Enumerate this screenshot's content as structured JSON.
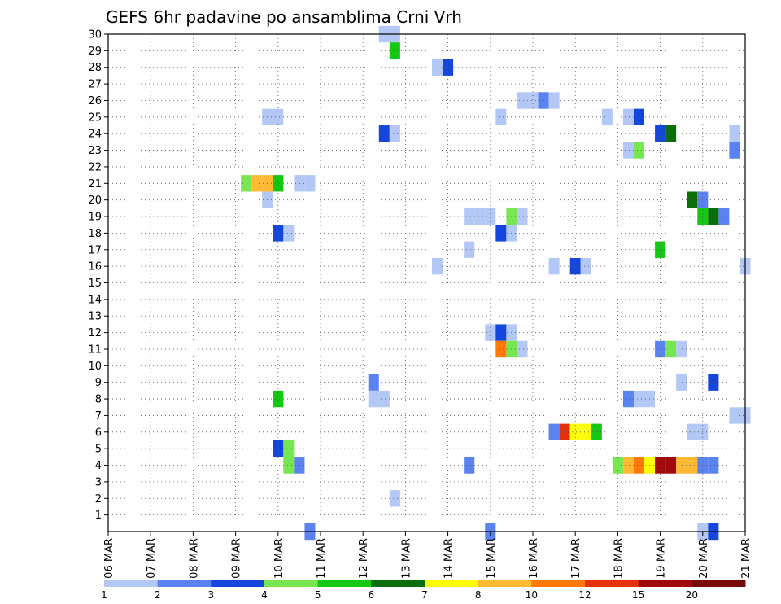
{
  "chart_data": {
    "type": "heatmap",
    "title": "GEFS 6hr padavine po ansamblima Crni Vrh",
    "x_ticks": [
      "06 MAR",
      "07 MAR",
      "08 MAR",
      "09 MAR",
      "10 MAR",
      "11 MAR",
      "12 MAR",
      "13 MAR",
      "14 MAR",
      "15 MAR",
      "16 MAR",
      "17 MAR",
      "18 MAR",
      "19 MAR",
      "20 MAR",
      "21 MAR"
    ],
    "y_ticks": [
      1,
      2,
      3,
      4,
      5,
      6,
      7,
      8,
      9,
      10,
      11,
      12,
      13,
      14,
      15,
      16,
      17,
      18,
      19,
      20,
      21,
      22,
      23,
      24,
      25,
      26,
      27,
      28,
      29,
      30
    ],
    "xlim_days": [
      6,
      21
    ],
    "ylim": [
      0,
      30
    ],
    "grid": true,
    "legend": {
      "placement": "bottom",
      "labels": [
        "1",
        "2",
        "3",
        "4",
        "5",
        "6",
        "7",
        "8",
        "10",
        "12",
        "15",
        "20"
      ],
      "colors": [
        "#b4c8f5",
        "#5a82f0",
        "#1446dc",
        "#78e650",
        "#14c814",
        "#0a6e0a",
        "#ffff0a",
        "#ffb932",
        "#ff780a",
        "#e6320a",
        "#a00a0a",
        "#780a0a"
      ]
    },
    "cells": [
      {
        "day": 12.5,
        "member": 30,
        "value": 1.5
      },
      {
        "day": 12.75,
        "member": 30,
        "value": 1.5
      },
      {
        "day": 12.75,
        "member": 29,
        "value": 5.5
      },
      {
        "day": 13.75,
        "member": 28,
        "value": 1.5
      },
      {
        "day": 14.0,
        "member": 28,
        "value": 3.5
      },
      {
        "day": 15.75,
        "member": 26,
        "value": 1.5
      },
      {
        "day": 16.0,
        "member": 26,
        "value": 1.5
      },
      {
        "day": 16.25,
        "member": 26,
        "value": 2.5
      },
      {
        "day": 16.5,
        "member": 26,
        "value": 1.5
      },
      {
        "day": 9.75,
        "member": 25,
        "value": 1.5
      },
      {
        "day": 10.0,
        "member": 25,
        "value": 1.5
      },
      {
        "day": 15.25,
        "member": 25,
        "value": 1.5
      },
      {
        "day": 17.75,
        "member": 25,
        "value": 1.5
      },
      {
        "day": 18.25,
        "member": 25,
        "value": 1.5
      },
      {
        "day": 18.5,
        "member": 25,
        "value": 3.5
      },
      {
        "day": 12.5,
        "member": 24,
        "value": 3.5
      },
      {
        "day": 12.75,
        "member": 24,
        "value": 1.5
      },
      {
        "day": 19.0,
        "member": 24,
        "value": 3.5
      },
      {
        "day": 19.25,
        "member": 24,
        "value": 6.5
      },
      {
        "day": 20.75,
        "member": 24,
        "value": 1.5
      },
      {
        "day": 18.25,
        "member": 23,
        "value": 1.5
      },
      {
        "day": 18.5,
        "member": 23,
        "value": 4.5
      },
      {
        "day": 20.75,
        "member": 23,
        "value": 2.5
      },
      {
        "day": 9.25,
        "member": 21,
        "value": 4.5
      },
      {
        "day": 9.5,
        "member": 21,
        "value": 9
      },
      {
        "day": 9.75,
        "member": 21,
        "value": 9
      },
      {
        "day": 10.0,
        "member": 21,
        "value": 5.5
      },
      {
        "day": 10.5,
        "member": 21,
        "value": 1.5
      },
      {
        "day": 10.75,
        "member": 21,
        "value": 1.5
      },
      {
        "day": 9.75,
        "member": 20,
        "value": 1.5
      },
      {
        "day": 19.75,
        "member": 20,
        "value": 6.5
      },
      {
        "day": 20.0,
        "member": 20,
        "value": 2.5
      },
      {
        "day": 14.5,
        "member": 19,
        "value": 1.5
      },
      {
        "day": 14.75,
        "member": 19,
        "value": 1.5
      },
      {
        "day": 15.0,
        "member": 19,
        "value": 1.5
      },
      {
        "day": 15.5,
        "member": 19,
        "value": 4.5
      },
      {
        "day": 15.75,
        "member": 19,
        "value": 1.5
      },
      {
        "day": 20.0,
        "member": 19,
        "value": 5.5
      },
      {
        "day": 20.25,
        "member": 19,
        "value": 6.5
      },
      {
        "day": 20.5,
        "member": 19,
        "value": 2.5
      },
      {
        "day": 10.0,
        "member": 18,
        "value": 3.5
      },
      {
        "day": 10.25,
        "member": 18,
        "value": 1.5
      },
      {
        "day": 15.25,
        "member": 18,
        "value": 3.5
      },
      {
        "day": 15.5,
        "member": 18,
        "value": 1.5
      },
      {
        "day": 14.5,
        "member": 17,
        "value": 1.5
      },
      {
        "day": 19.0,
        "member": 17,
        "value": 5.5
      },
      {
        "day": 13.75,
        "member": 16,
        "value": 1.5
      },
      {
        "day": 16.5,
        "member": 16,
        "value": 1.5
      },
      {
        "day": 17.0,
        "member": 16,
        "value": 3
      },
      {
        "day": 17.25,
        "member": 16,
        "value": 1.5
      },
      {
        "day": 21.0,
        "member": 16,
        "value": 1.5
      },
      {
        "day": 15.0,
        "member": 12,
        "value": 1.5
      },
      {
        "day": 15.25,
        "member": 12,
        "value": 3.5
      },
      {
        "day": 15.5,
        "member": 12,
        "value": 1.5
      },
      {
        "day": 15.25,
        "member": 11,
        "value": 11
      },
      {
        "day": 15.5,
        "member": 11,
        "value": 4.5
      },
      {
        "day": 15.75,
        "member": 11,
        "value": 1.5
      },
      {
        "day": 19.0,
        "member": 11,
        "value": 2.5
      },
      {
        "day": 19.25,
        "member": 11,
        "value": 4.5
      },
      {
        "day": 19.5,
        "member": 11,
        "value": 1.5
      },
      {
        "day": 12.25,
        "member": 9,
        "value": 2.5
      },
      {
        "day": 19.5,
        "member": 9,
        "value": 1.5
      },
      {
        "day": 20.25,
        "member": 9,
        "value": 3.5
      },
      {
        "day": 12.25,
        "member": 8,
        "value": 1.5
      },
      {
        "day": 12.5,
        "member": 8,
        "value": 1.5
      },
      {
        "day": 10.0,
        "member": 8,
        "value": 5.5
      },
      {
        "day": 18.25,
        "member": 8,
        "value": 2.5
      },
      {
        "day": 18.5,
        "member": 8,
        "value": 1.5
      },
      {
        "day": 18.75,
        "member": 8,
        "value": 1.5
      },
      {
        "day": 20.75,
        "member": 7,
        "value": 1.5
      },
      {
        "day": 21.0,
        "member": 7,
        "value": 1.5
      },
      {
        "day": 16.5,
        "member": 6,
        "value": 2.5
      },
      {
        "day": 16.75,
        "member": 6,
        "value": 13
      },
      {
        "day": 17.0,
        "member": 6,
        "value": 7.5
      },
      {
        "day": 17.25,
        "member": 6,
        "value": 7.5
      },
      {
        "day": 17.5,
        "member": 6,
        "value": 5.5
      },
      {
        "day": 19.75,
        "member": 6,
        "value": 1.5
      },
      {
        "day": 20.0,
        "member": 6,
        "value": 1.5
      },
      {
        "day": 10.0,
        "member": 5,
        "value": 3.5
      },
      {
        "day": 10.25,
        "member": 5,
        "value": 4.5
      },
      {
        "day": 10.25,
        "member": 4,
        "value": 4.5
      },
      {
        "day": 10.5,
        "member": 4,
        "value": 2.5
      },
      {
        "day": 14.5,
        "member": 4,
        "value": 2.5
      },
      {
        "day": 18.0,
        "member": 4,
        "value": 4.5
      },
      {
        "day": 18.25,
        "member": 4,
        "value": 9
      },
      {
        "day": 18.5,
        "member": 4,
        "value": 11
      },
      {
        "day": 18.75,
        "member": 4,
        "value": 7.5
      },
      {
        "day": 19.0,
        "member": 4,
        "value": 17
      },
      {
        "day": 19.25,
        "member": 4,
        "value": 17
      },
      {
        "day": 19.5,
        "member": 4,
        "value": 9
      },
      {
        "day": 19.75,
        "member": 4,
        "value": 9
      },
      {
        "day": 20.0,
        "member": 4,
        "value": 2.5
      },
      {
        "day": 20.25,
        "member": 4,
        "value": 2.5
      },
      {
        "day": 12.75,
        "member": 2,
        "value": 1.5
      },
      {
        "day": 10.75,
        "member": 0,
        "value": 2.5
      },
      {
        "day": 15.0,
        "member": 0,
        "value": 2.5
      },
      {
        "day": 20.0,
        "member": 0,
        "value": 1.5
      },
      {
        "day": 20.25,
        "member": 0,
        "value": 3.5
      }
    ]
  }
}
